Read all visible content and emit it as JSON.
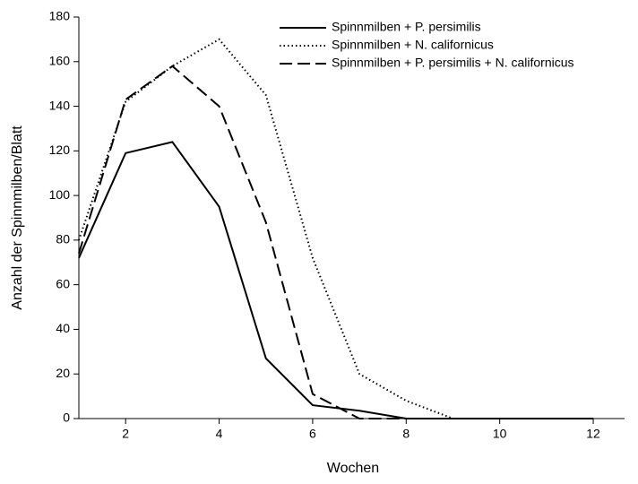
{
  "chart_data": {
    "type": "line",
    "x_label": "Wochen",
    "y_label": "Anzahl der Spinnmilben/Blatt",
    "x": [
      1,
      2,
      3,
      4,
      5,
      6,
      7,
      8,
      9,
      10,
      11,
      12
    ],
    "series": [
      {
        "name": "Spinnmilben + P. persimilis",
        "color": "#000000",
        "dash": "solid",
        "values": [
          72,
          119,
          124,
          95,
          27,
          6,
          3.5,
          0,
          0,
          0,
          0,
          0
        ]
      },
      {
        "name": "Spinnmilben + N. californicus",
        "color": "#000000",
        "dash": "dotted",
        "values": [
          80,
          142,
          158,
          170,
          145,
          72,
          20,
          8,
          0,
          0,
          0,
          0
        ]
      },
      {
        "name": "Spinnmilben + P. persimilis + N. californicus",
        "color": "#000000",
        "dash": "dashed",
        "values": [
          74,
          143,
          158,
          140,
          88,
          11,
          0,
          0,
          0,
          0,
          0,
          0
        ]
      }
    ],
    "xlim": [
      1,
      12.67
    ],
    "xticks": [
      2,
      4,
      6,
      8,
      10,
      12
    ],
    "ylim": [
      0,
      180
    ],
    "yticks": [
      0,
      20,
      40,
      60,
      80,
      100,
      120,
      140,
      160,
      180
    ],
    "grid": false,
    "legend": "upper right"
  }
}
